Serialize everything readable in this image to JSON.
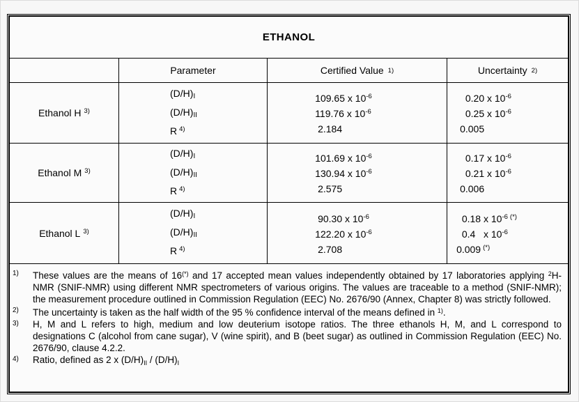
{
  "colors": {
    "page_bg": "#f7f7f7",
    "table_border": "#000000",
    "text": "#000000"
  },
  "title": "ETHANOL",
  "header": {
    "parameter": "Parameter",
    "certified_value": "Certified Value",
    "certified_value_note": "1)",
    "uncertainty": "Uncertainty",
    "uncertainty_note": "2)"
  },
  "rows": [
    {
      "label": "Ethanol H",
      "label_note": "3)",
      "params": [
        {
          "base": "(D/H)",
          "sub": "I"
        },
        {
          "base": "(D/H)",
          "sub": "II"
        },
        {
          "base": "R",
          "sup": "4)"
        }
      ],
      "certified": [
        {
          "val": "109.65 x 10",
          "exp": "-6"
        },
        {
          "val": "119.76 x 10",
          "exp": "-6"
        },
        {
          "val": " 2.184"
        }
      ],
      "uncertainty": [
        {
          "val": "  0.20 x 10",
          "exp": "-6"
        },
        {
          "val": "  0.25 x 10",
          "exp": "-6"
        },
        {
          "val": "0.005"
        }
      ]
    },
    {
      "label": "Ethanol M",
      "label_note": "3)",
      "params": [
        {
          "base": "(D/H)",
          "sub": "I"
        },
        {
          "base": "(D/H)",
          "sub": "II"
        },
        {
          "base": "R",
          "sup": "4)"
        }
      ],
      "certified": [
        {
          "val": "101.69 x 10",
          "exp": "-6"
        },
        {
          "val": "130.94 x 10",
          "exp": "-6"
        },
        {
          "val": " 2.575"
        }
      ],
      "uncertainty": [
        {
          "val": "  0.17 x 10",
          "exp": "-6"
        },
        {
          "val": "  0.21 x 10",
          "exp": "-6"
        },
        {
          "val": "0.006"
        }
      ]
    },
    {
      "label": "Ethanol L",
      "label_note": "3)",
      "params": [
        {
          "base": "(D/H)",
          "sub": "I"
        },
        {
          "base": "(D/H)",
          "sub": "II"
        },
        {
          "base": "R",
          "sup": "4)"
        }
      ],
      "certified": [
        {
          "val": " 90.30 x 10",
          "exp": "-6"
        },
        {
          "val": "122.20 x 10",
          "exp": "-6"
        },
        {
          "val": " 2.708"
        }
      ],
      "uncertainty": [
        {
          "val": "  0.18 x 10",
          "exp": "-6",
          "note": "(*)"
        },
        {
          "val": "  0.4   x 10",
          "exp": "-6"
        },
        {
          "val": "0.009",
          "note": "(*)"
        }
      ]
    }
  ],
  "footnotes": [
    {
      "marker": "1)",
      "segments": [
        {
          "text": "These values are the means of 16"
        },
        {
          "text": "(*)",
          "style": "sup"
        },
        {
          "text": " and 17 accepted mean values independently obtained by 17 laboratories applying "
        },
        {
          "text": "2",
          "style": "sup"
        },
        {
          "text": "H-NMR (SNIF-NMR) using different NMR spectrometers of various origins. The values are traceable to a method (SNIF-NMR); the measurement procedure outlined in Commission Regulation (EEC) No. 2676/90 (Annex, Chapter 8) was strictly followed."
        }
      ]
    },
    {
      "marker": "2)",
      "segments": [
        {
          "text": "The uncertainty is taken as the half width of the 95 % confidence interval of the means defined in "
        },
        {
          "text": "1)",
          "style": "sup"
        },
        {
          "text": "."
        }
      ]
    },
    {
      "marker": "3)",
      "segments": [
        {
          "text": "H, M and L refers to high, medium and low deuterium isotope ratios. The three ethanols H, M, and L correspond to designations C (alcohol from cane sugar), V (wine spirit), and B (beet sugar) as outlined in Commission Regulation (EEC) No. 2676/90, clause 4.2.2."
        }
      ]
    },
    {
      "marker": "4)",
      "segments": [
        {
          "text": "Ratio, defined as 2 x (D/H)"
        },
        {
          "text": "II",
          "style": "sub"
        },
        {
          "text": " / (D/H)"
        },
        {
          "text": "I",
          "style": "sub"
        }
      ]
    }
  ]
}
